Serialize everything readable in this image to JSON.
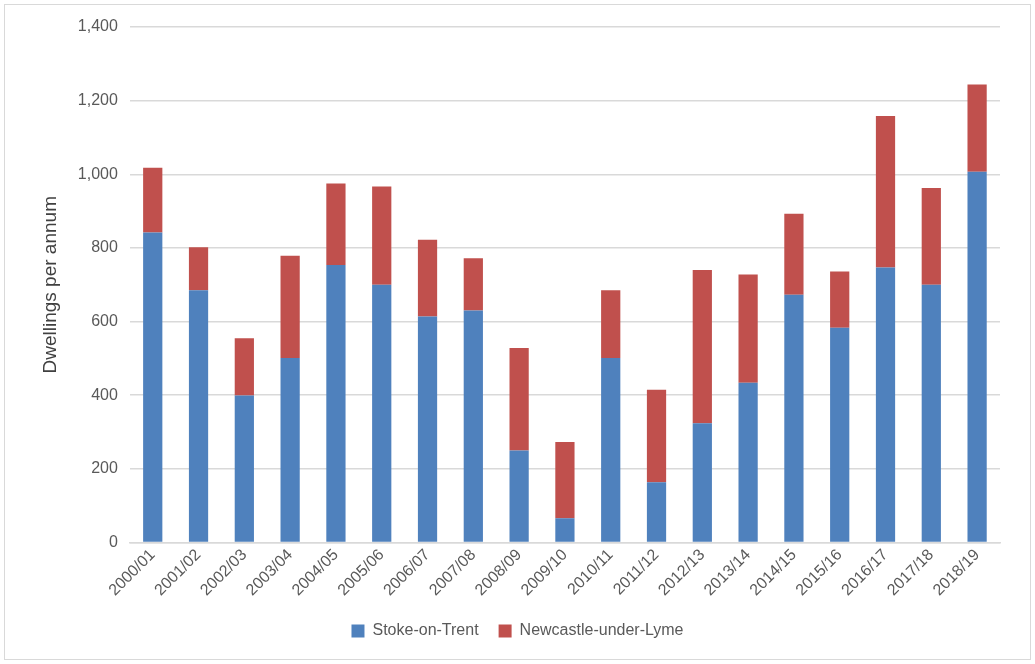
{
  "chart_data": {
    "type": "bar",
    "stacked": true,
    "ylabel": "Dwellings per annum",
    "categories": [
      "2000/01",
      "2001/02",
      "2002/03",
      "2003/04",
      "2004/05",
      "2005/06",
      "2006/07",
      "2007/08",
      "2008/09",
      "2009/10",
      "2010/11",
      "2011/12",
      "2012/13",
      "2013/14",
      "2014/15",
      "2015/16",
      "2016/17",
      "2017/18",
      "2018/19"
    ],
    "series": [
      {
        "name": "Stoke-on-Trent",
        "color": "#4f81bd",
        "values": [
          842,
          685,
          399,
          501,
          754,
          700,
          614,
          630,
          250,
          66,
          501,
          164,
          324,
          434,
          673,
          583,
          747,
          700,
          1007
        ]
      },
      {
        "name": "Newcastle-under-Lyme",
        "color": "#c0504d",
        "values": [
          176,
          117,
          156,
          278,
          221,
          267,
          208,
          142,
          278,
          207,
          184,
          251,
          416,
          294,
          220,
          153,
          411,
          263,
          237
        ]
      }
    ],
    "ylim": [
      0,
      1400
    ],
    "yticks": [
      {
        "value": 0,
        "label": "0"
      },
      {
        "value": 200,
        "label": "200"
      },
      {
        "value": 400,
        "label": "400"
      },
      {
        "value": 600,
        "label": "600"
      },
      {
        "value": 800,
        "label": "800"
      },
      {
        "value": 1000,
        "label": "1,000"
      },
      {
        "value": 1200,
        "label": "1,200"
      },
      {
        "value": 1400,
        "label": "1,400"
      }
    ],
    "grid": "y",
    "legend": "bottom"
  }
}
